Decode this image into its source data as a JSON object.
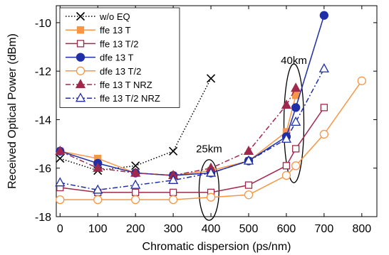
{
  "chart_data": {
    "type": "line",
    "xlabel": "Chromatic dispersion (ps/nm)",
    "ylabel": "Received Optical Power (dBm)",
    "xlim": [
      -10,
      840
    ],
    "ylim": [
      -18,
      -9.3
    ],
    "xticks": [
      0,
      100,
      200,
      300,
      400,
      500,
      600,
      700,
      800
    ],
    "yticks": [
      -18,
      -16,
      -14,
      -12,
      -10
    ],
    "grid": false,
    "legend_position": "top-left",
    "series": [
      {
        "name": "w/o EQ",
        "color": "#000000",
        "dash": "dotted",
        "marker": "x",
        "x": [
          0,
          100,
          200,
          300,
          400
        ],
        "y": [
          -15.6,
          -16.1,
          -15.9,
          -15.3,
          -12.3
        ]
      },
      {
        "name": "ffe 13 T",
        "color": "#F79646",
        "dash": "solid",
        "marker": "square-filled",
        "x": [
          0,
          100,
          200,
          300,
          400,
          500,
          600,
          625
        ],
        "y": [
          -15.3,
          -15.6,
          -16.2,
          -16.3,
          -16.1,
          -15.7,
          -14.5,
          -13.0
        ]
      },
      {
        "name": "ffe 13 T/2",
        "color": "#A0284C",
        "dash": "solid",
        "marker": "square-open",
        "x": [
          0,
          100,
          200,
          300,
          400,
          500,
          600,
          625,
          700
        ],
        "y": [
          -16.8,
          -17.0,
          -17.0,
          -17.0,
          -17.0,
          -16.7,
          -15.9,
          -15.2,
          -13.5
        ]
      },
      {
        "name": "dfe 13 T",
        "color": "#1F2FA8",
        "dash": "solid",
        "marker": "circle-filled",
        "x": [
          0,
          100,
          200,
          300,
          400,
          500,
          600,
          625,
          700
        ],
        "y": [
          -15.3,
          -15.8,
          -16.2,
          -16.3,
          -16.2,
          -15.7,
          -14.7,
          -13.5,
          -9.7
        ]
      },
      {
        "name": "dfe 13 T/2",
        "color": "#F79646",
        "dash": "solid",
        "marker": "circle-open",
        "x": [
          0,
          100,
          200,
          300,
          400,
          500,
          600,
          625,
          700,
          800
        ],
        "y": [
          -17.3,
          -17.3,
          -17.3,
          -17.3,
          -17.2,
          -17.1,
          -16.3,
          -15.9,
          -14.6,
          -12.4
        ]
      },
      {
        "name": "ffe 13 T NRZ",
        "color": "#A0284C",
        "dash": "dashdot",
        "marker": "triangle-filled",
        "x": [
          0,
          100,
          200,
          300,
          400,
          500,
          600,
          625
        ],
        "y": [
          -15.3,
          -16.0,
          -16.2,
          -16.3,
          -16.0,
          -15.3,
          -13.4,
          -12.7
        ]
      },
      {
        "name": "ffe 13 T/2 NRZ",
        "color": "#1F2FA8",
        "dash": "dashdot",
        "marker": "triangle-open",
        "x": [
          0,
          100,
          200,
          300,
          400,
          500,
          600,
          625,
          700
        ],
        "y": [
          -16.6,
          -16.9,
          -16.7,
          -16.5,
          -16.2,
          -15.7,
          -14.8,
          -14.1,
          -11.9
        ]
      }
    ],
    "annotations": [
      {
        "text": "25km",
        "x": 395,
        "y": -15.35
      },
      {
        "text": "40km",
        "x": 620,
        "y": -11.7
      }
    ],
    "ellipses": [
      {
        "cx": 395,
        "cy": -16.9,
        "rx": 14,
        "ry": 1.25
      },
      {
        "cx": 620,
        "cy": -14.15,
        "rx": 14,
        "ry": 2.45
      }
    ]
  }
}
